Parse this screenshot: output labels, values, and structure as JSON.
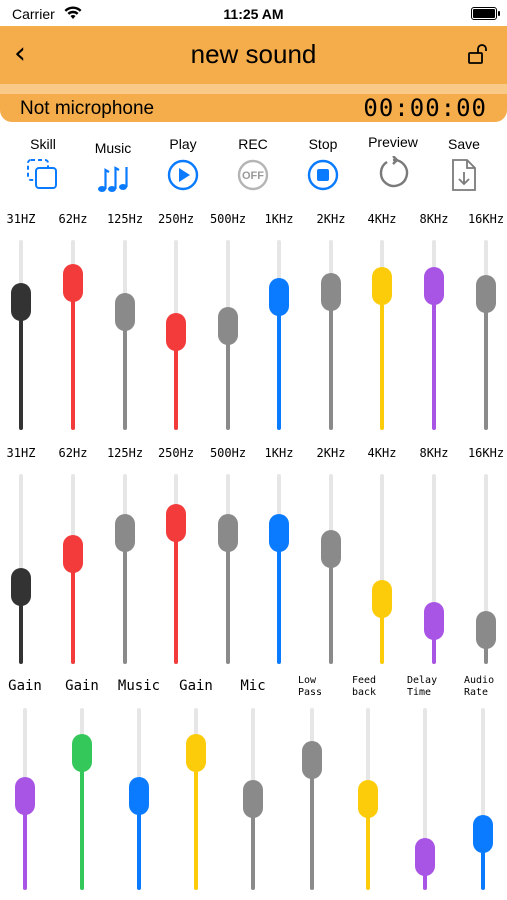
{
  "status_bar": {
    "carrier": "Carrier",
    "time": "11:25 AM"
  },
  "nav": {
    "title": "new sound"
  },
  "info": {
    "microphone_status": "Not microphone",
    "timer": "00:00:00"
  },
  "toolbar": {
    "items": [
      {
        "label": "Skill",
        "icon": "copy-dashed-icon"
      },
      {
        "label": "Music",
        "icon": "music-notes-icon"
      },
      {
        "label": "Play",
        "icon": "play-circle-icon"
      },
      {
        "label": "REC",
        "icon": "rec-off-icon",
        "icon_text": "OFF"
      },
      {
        "label": "Stop",
        "icon": "stop-circle-icon"
      },
      {
        "label": "Preview",
        "icon": "refresh-icon"
      },
      {
        "label": "Save",
        "icon": "file-download-icon"
      }
    ]
  },
  "colors": {
    "accent": "#f5ac4a",
    "blue": "#0a7bff",
    "red": "#f33b3b",
    "gray": "#8a8a8a",
    "dark": "#333333",
    "yellow": "#fccc0a",
    "purple": "#a855e6",
    "green": "#34c759"
  },
  "eq1": {
    "bands": [
      {
        "label": "31HZ",
        "color": "#333333",
        "level": 0.72
      },
      {
        "label": "62Hz",
        "color": "#f33b3b",
        "level": 0.84
      },
      {
        "label": "125Hz",
        "color": "#8a8a8a",
        "level": 0.65
      },
      {
        "label": "250Hz",
        "color": "#f33b3b",
        "level": 0.52
      },
      {
        "label": "500Hz",
        "color": "#8a8a8a",
        "level": 0.56
      },
      {
        "label": "1KHz",
        "color": "#0a7bff",
        "level": 0.75
      },
      {
        "label": "2KHz",
        "color": "#8a8a8a",
        "level": 0.78
      },
      {
        "label": "4KHz",
        "color": "#fccc0a",
        "level": 0.82
      },
      {
        "label": "8KHz",
        "color": "#a855e6",
        "level": 0.82
      },
      {
        "label": "16KHz",
        "color": "#8a8a8a",
        "level": 0.77
      }
    ]
  },
  "eq2": {
    "bands": [
      {
        "label": "31HZ",
        "color": "#333333",
        "level": 0.38
      },
      {
        "label": "62Hz",
        "color": "#f33b3b",
        "level": 0.6
      },
      {
        "label": "125Hz",
        "color": "#8a8a8a",
        "level": 0.74
      },
      {
        "label": "250Hz",
        "color": "#f33b3b",
        "level": 0.8
      },
      {
        "label": "500Hz",
        "color": "#8a8a8a",
        "level": 0.74
      },
      {
        "label": "1KHz",
        "color": "#0a7bff",
        "level": 0.74
      },
      {
        "label": "2KHz",
        "color": "#8a8a8a",
        "level": 0.63
      },
      {
        "label": "4KHz",
        "color": "#fccc0a",
        "level": 0.3
      },
      {
        "label": "8KHz",
        "color": "#a855e6",
        "level": 0.16
      },
      {
        "label": "16KHz",
        "color": "#8a8a8a",
        "level": 0.1
      }
    ]
  },
  "effects": {
    "items": [
      {
        "label": "Gain",
        "color": "#a855e6",
        "level": 0.52
      },
      {
        "label": "Gain",
        "color": "#34c759",
        "level": 0.82
      },
      {
        "label": "Music",
        "color": "#0a7bff",
        "level": 0.52
      },
      {
        "label": "Gain",
        "color": "#fccc0a",
        "level": 0.82
      },
      {
        "label": "Mic",
        "color": "#8a8a8a",
        "level": 0.5
      },
      {
        "label": "Low Pass",
        "color": "#8a8a8a",
        "level": 0.77
      },
      {
        "label": "Feed back",
        "color": "#fccc0a",
        "level": 0.5
      },
      {
        "label": "Delay Time",
        "color": "#a855e6",
        "level": 0.1
      },
      {
        "label": "Audio Rate",
        "color": "#0a7bff",
        "level": 0.26
      }
    ]
  }
}
